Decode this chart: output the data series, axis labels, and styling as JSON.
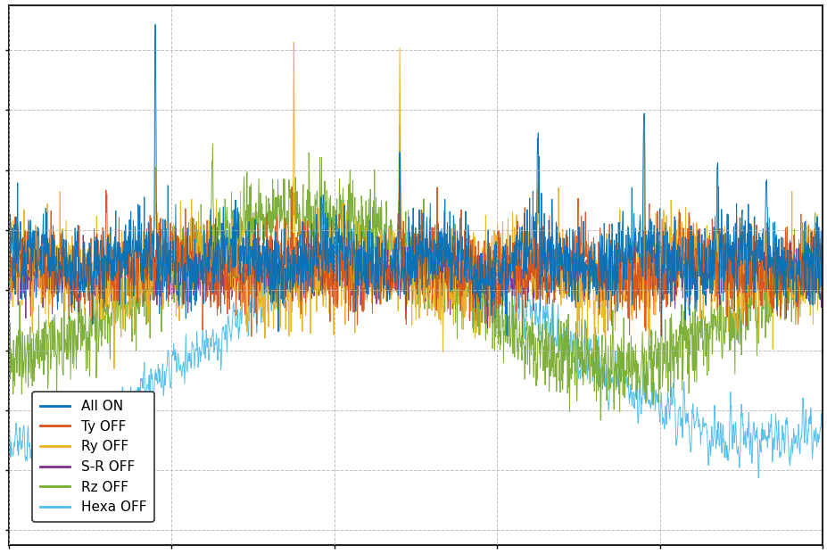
{
  "title": "",
  "xlabel": "",
  "ylabel": "",
  "background_color": "#ffffff",
  "grid_color": "#b0b0b0",
  "legend_entries": [
    "All ON",
    "Ty OFF",
    "Ry OFF",
    "S-R OFF",
    "Rz OFF",
    "Hexa OFF"
  ],
  "line_colors": [
    "#0072bd",
    "#d95319",
    "#edb120",
    "#7e2f8e",
    "#77ac30",
    "#4dbeee"
  ],
  "n_points": 2000,
  "seed": 12345,
  "figsize": [
    9.28,
    6.21
  ],
  "dpi": 100
}
